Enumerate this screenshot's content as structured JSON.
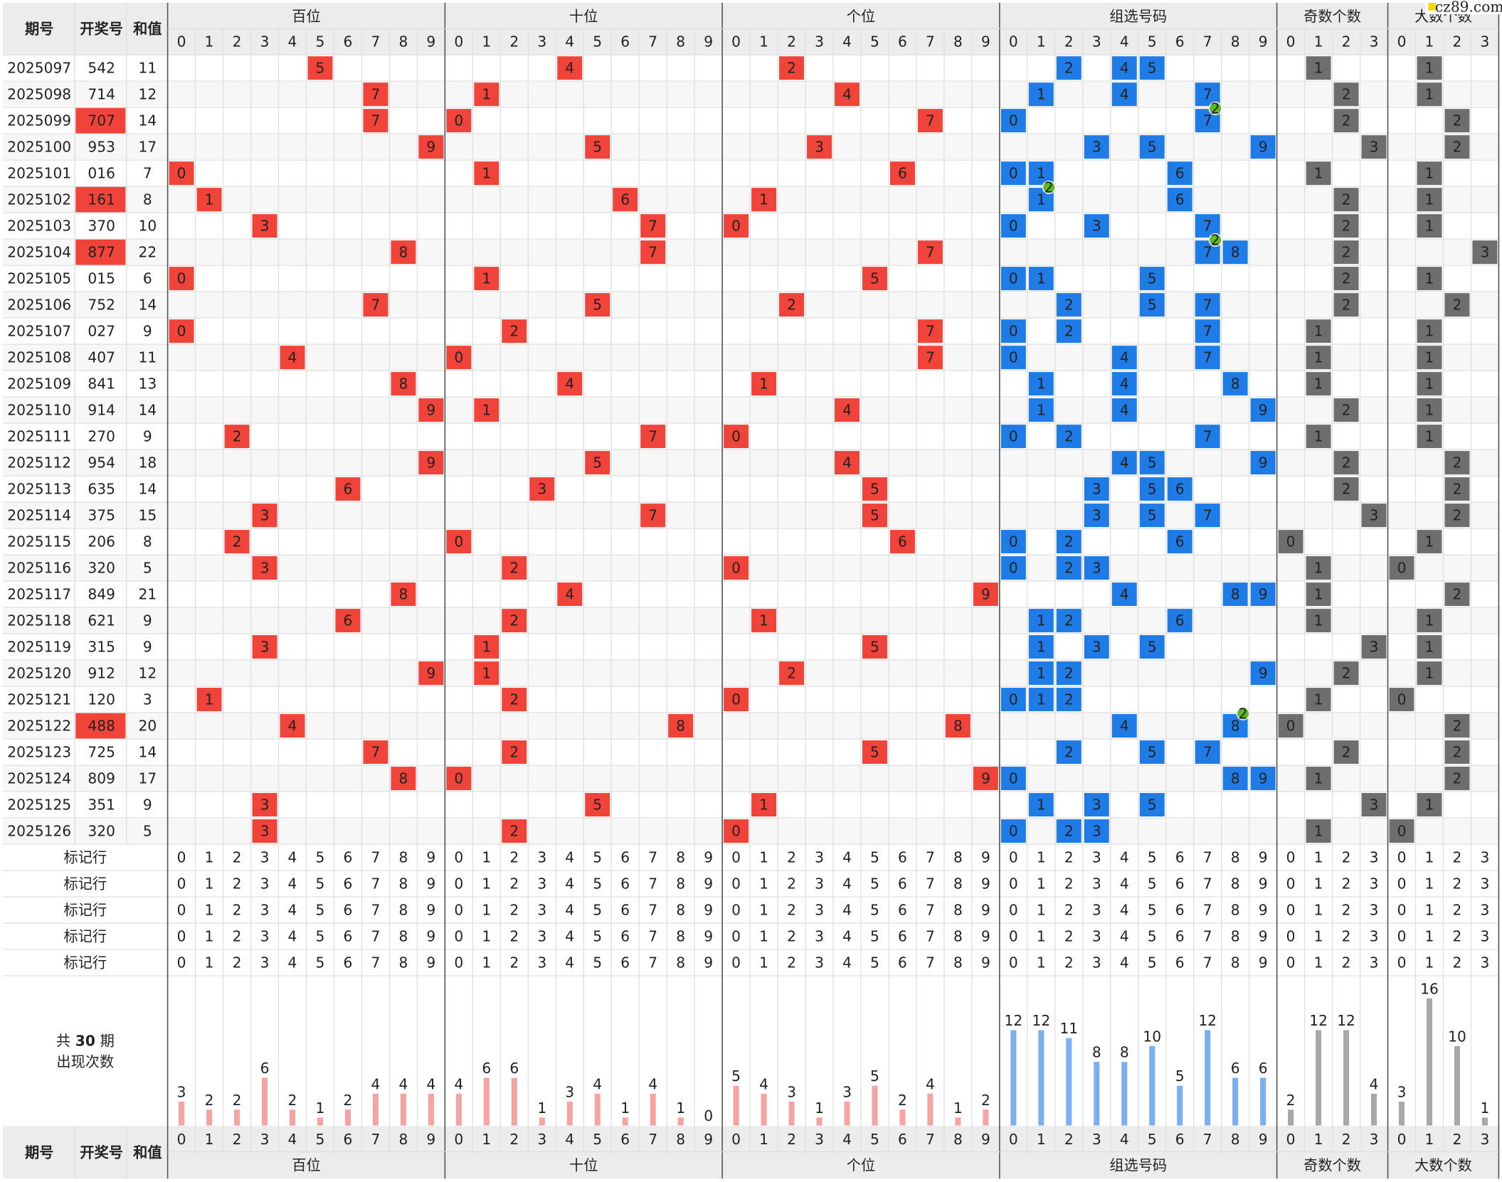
{
  "labels": {
    "issue": "期号",
    "draw": "开奖号",
    "sum": "和值",
    "marker": "标记行",
    "total_prefix": "共",
    "total": 30,
    "total_suffix": "期",
    "occurrence": "出现次数"
  },
  "watermark": "cz89.com",
  "digits": [
    0,
    1,
    2,
    3,
    4,
    5,
    6,
    7,
    8,
    9
  ],
  "small_digits": [
    0,
    1,
    2,
    3
  ],
  "sections": [
    {
      "title": "百位",
      "counts": [
        3,
        2,
        2,
        6,
        2,
        1,
        2,
        4,
        4,
        4
      ]
    },
    {
      "title": "十位",
      "counts": [
        4,
        6,
        6,
        1,
        3,
        4,
        1,
        4,
        1,
        0
      ]
    },
    {
      "title": "个位",
      "counts": [
        5,
        4,
        3,
        1,
        3,
        5,
        2,
        4,
        1,
        2
      ]
    },
    {
      "title": "组选号码",
      "counts": [
        12,
        12,
        11,
        8,
        8,
        10,
        5,
        12,
        6,
        6
      ]
    },
    {
      "title": "奇数个数",
      "counts": [
        2,
        12,
        12,
        4
      ]
    },
    {
      "title": "大数个数",
      "counts": [
        3,
        16,
        10,
        1
      ]
    }
  ],
  "rows": [
    {
      "issue": "2025097",
      "draw": "542",
      "sum": 11,
      "digits": [
        5,
        4,
        2
      ],
      "group": [
        2,
        4,
        5
      ],
      "odd": 1,
      "big": 1
    },
    {
      "issue": "2025098",
      "draw": "714",
      "sum": 12,
      "digits": [
        7,
        1,
        4
      ],
      "group": [
        1,
        4,
        7
      ],
      "odd": 2,
      "big": 1
    },
    {
      "issue": "2025099",
      "draw": "707",
      "sum": 14,
      "digits": [
        7,
        0,
        7
      ],
      "group": [
        0,
        7
      ],
      "odd": 2,
      "big": 2,
      "repeat": 2
    },
    {
      "issue": "2025100",
      "draw": "953",
      "sum": 17,
      "digits": [
        9,
        5,
        3
      ],
      "group": [
        3,
        5,
        9
      ],
      "odd": 3,
      "big": 2
    },
    {
      "issue": "2025101",
      "draw": "016",
      "sum": 7,
      "digits": [
        0,
        1,
        6
      ],
      "group": [
        0,
        1,
        6
      ],
      "odd": 1,
      "big": 1
    },
    {
      "issue": "2025102",
      "draw": "161",
      "sum": 8,
      "digits": [
        1,
        6,
        1
      ],
      "group": [
        1,
        6
      ],
      "odd": 2,
      "big": 1,
      "repeat": 2
    },
    {
      "issue": "2025103",
      "draw": "370",
      "sum": 10,
      "digits": [
        3,
        7,
        0
      ],
      "group": [
        0,
        3,
        7
      ],
      "odd": 2,
      "big": 1
    },
    {
      "issue": "2025104",
      "draw": "877",
      "sum": 22,
      "digits": [
        8,
        7,
        7
      ],
      "group": [
        7,
        8
      ],
      "odd": 2,
      "big": 3,
      "repeat": 2
    },
    {
      "issue": "2025105",
      "draw": "015",
      "sum": 6,
      "digits": [
        0,
        1,
        5
      ],
      "group": [
        0,
        1,
        5
      ],
      "odd": 2,
      "big": 1
    },
    {
      "issue": "2025106",
      "draw": "752",
      "sum": 14,
      "digits": [
        7,
        5,
        2
      ],
      "group": [
        2,
        5,
        7
      ],
      "odd": 2,
      "big": 2
    },
    {
      "issue": "2025107",
      "draw": "027",
      "sum": 9,
      "digits": [
        0,
        2,
        7
      ],
      "group": [
        0,
        2,
        7
      ],
      "odd": 1,
      "big": 1
    },
    {
      "issue": "2025108",
      "draw": "407",
      "sum": 11,
      "digits": [
        4,
        0,
        7
      ],
      "group": [
        0,
        4,
        7
      ],
      "odd": 1,
      "big": 1
    },
    {
      "issue": "2025109",
      "draw": "841",
      "sum": 13,
      "digits": [
        8,
        4,
        1
      ],
      "group": [
        1,
        4,
        8
      ],
      "odd": 1,
      "big": 1
    },
    {
      "issue": "2025110",
      "draw": "914",
      "sum": 14,
      "digits": [
        9,
        1,
        4
      ],
      "group": [
        1,
        4,
        9
      ],
      "odd": 2,
      "big": 1
    },
    {
      "issue": "2025111",
      "draw": "270",
      "sum": 9,
      "digits": [
        2,
        7,
        0
      ],
      "group": [
        0,
        2,
        7
      ],
      "odd": 1,
      "big": 1
    },
    {
      "issue": "2025112",
      "draw": "954",
      "sum": 18,
      "digits": [
        9,
        5,
        4
      ],
      "group": [
        4,
        5,
        9
      ],
      "odd": 2,
      "big": 2
    },
    {
      "issue": "2025113",
      "draw": "635",
      "sum": 14,
      "digits": [
        6,
        3,
        5
      ],
      "group": [
        3,
        5,
        6
      ],
      "odd": 2,
      "big": 2
    },
    {
      "issue": "2025114",
      "draw": "375",
      "sum": 15,
      "digits": [
        3,
        7,
        5
      ],
      "group": [
        3,
        5,
        7
      ],
      "odd": 3,
      "big": 2
    },
    {
      "issue": "2025115",
      "draw": "206",
      "sum": 8,
      "digits": [
        2,
        0,
        6
      ],
      "group": [
        0,
        2,
        6
      ],
      "odd": 0,
      "big": 1
    },
    {
      "issue": "2025116",
      "draw": "320",
      "sum": 5,
      "digits": [
        3,
        2,
        0
      ],
      "group": [
        0,
        2,
        3
      ],
      "odd": 1,
      "big": 0
    },
    {
      "issue": "2025117",
      "draw": "849",
      "sum": 21,
      "digits": [
        8,
        4,
        9
      ],
      "group": [
        4,
        8,
        9
      ],
      "odd": 1,
      "big": 2
    },
    {
      "issue": "2025118",
      "draw": "621",
      "sum": 9,
      "digits": [
        6,
        2,
        1
      ],
      "group": [
        1,
        2,
        6
      ],
      "odd": 1,
      "big": 1
    },
    {
      "issue": "2025119",
      "draw": "315",
      "sum": 9,
      "digits": [
        3,
        1,
        5
      ],
      "group": [
        1,
        3,
        5
      ],
      "odd": 3,
      "big": 1
    },
    {
      "issue": "2025120",
      "draw": "912",
      "sum": 12,
      "digits": [
        9,
        1,
        2
      ],
      "group": [
        1,
        2,
        9
      ],
      "odd": 2,
      "big": 1
    },
    {
      "issue": "2025121",
      "draw": "120",
      "sum": 3,
      "digits": [
        1,
        2,
        0
      ],
      "group": [
        0,
        1,
        2
      ],
      "odd": 1,
      "big": 0
    },
    {
      "issue": "2025122",
      "draw": "488",
      "sum": 20,
      "digits": [
        4,
        8,
        8
      ],
      "group": [
        4,
        8
      ],
      "odd": 0,
      "big": 2,
      "repeat": 2
    },
    {
      "issue": "2025123",
      "draw": "725",
      "sum": 14,
      "digits": [
        7,
        2,
        5
      ],
      "group": [
        2,
        5,
        7
      ],
      "odd": 2,
      "big": 2
    },
    {
      "issue": "2025124",
      "draw": "809",
      "sum": 17,
      "digits": [
        8,
        0,
        9
      ],
      "group": [
        0,
        8,
        9
      ],
      "odd": 1,
      "big": 2
    },
    {
      "issue": "2025125",
      "draw": "351",
      "sum": 9,
      "digits": [
        3,
        5,
        1
      ],
      "group": [
        1,
        3,
        5
      ],
      "odd": 3,
      "big": 1
    },
    {
      "issue": "2025126",
      "draw": "320",
      "sum": 5,
      "digits": [
        3,
        2,
        0
      ],
      "group": [
        0,
        2,
        3
      ],
      "odd": 1,
      "big": 0
    }
  ]
}
